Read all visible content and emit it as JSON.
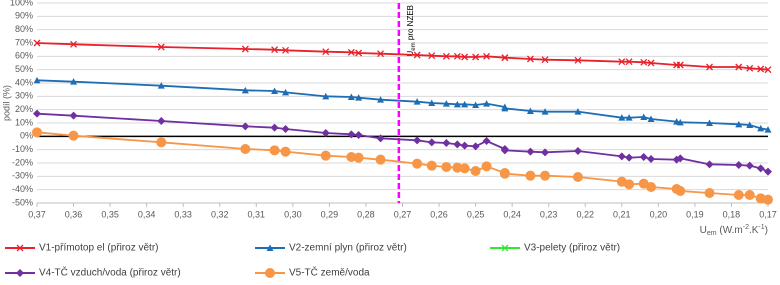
{
  "chart_data": {
    "type": "line",
    "y_label": "podíl (%)",
    "x_label": [
      "U",
      "em",
      " (W.m",
      "-2",
      ".K",
      "-1",
      ")"
    ],
    "annotation": {
      "x": 0.271,
      "text": [
        "U",
        "em",
        " pro NZEB"
      ],
      "color": "#ff00ff"
    },
    "xlim": [
      0.37,
      0.17
    ],
    "ylim": [
      -50,
      100
    ],
    "xticks": [
      {
        "value": 0.37,
        "label": "0,37"
      },
      {
        "value": 0.36,
        "label": "0,36"
      },
      {
        "value": 0.35,
        "label": "0,35"
      },
      {
        "value": 0.34,
        "label": "0,34"
      },
      {
        "value": 0.33,
        "label": "0,33"
      },
      {
        "value": 0.32,
        "label": "0,32"
      },
      {
        "value": 0.31,
        "label": "0,31"
      },
      {
        "value": 0.3,
        "label": "0,30"
      },
      {
        "value": 0.29,
        "label": "0,29"
      },
      {
        "value": 0.28,
        "label": "0,28"
      },
      {
        "value": 0.27,
        "label": "0,27"
      },
      {
        "value": 0.26,
        "label": "0,26"
      },
      {
        "value": 0.25,
        "label": "0,25"
      },
      {
        "value": 0.24,
        "label": "0,24"
      },
      {
        "value": 0.23,
        "label": "0,23"
      },
      {
        "value": 0.22,
        "label": "0,22"
      },
      {
        "value": 0.21,
        "label": "0,21"
      },
      {
        "value": 0.2,
        "label": "0,20"
      },
      {
        "value": 0.19,
        "label": "0,19"
      },
      {
        "value": 0.18,
        "label": "0,18"
      },
      {
        "value": 0.17,
        "label": "0,17"
      }
    ],
    "yticks": [
      {
        "value": 100,
        "label": "100%"
      },
      {
        "value": 90,
        "label": "90%"
      },
      {
        "value": 80,
        "label": "80%"
      },
      {
        "value": 70,
        "label": "70%"
      },
      {
        "value": 60,
        "label": "60%"
      },
      {
        "value": 50,
        "label": "50%"
      },
      {
        "value": 40,
        "label": "40%"
      },
      {
        "value": 30,
        "label": "30%"
      },
      {
        "value": 20,
        "label": "20%"
      },
      {
        "value": 10,
        "label": "10%"
      },
      {
        "value": 0,
        "label": "0%"
      },
      {
        "value": -10,
        "label": "-10%"
      },
      {
        "value": -20,
        "label": "-20%"
      },
      {
        "value": -30,
        "label": "-30%"
      },
      {
        "value": -40,
        "label": "-40%"
      },
      {
        "value": -50,
        "label": "-50%"
      }
    ],
    "grid": true,
    "x": [
      0.37,
      0.36,
      0.336,
      0.313,
      0.305,
      0.302,
      0.291,
      0.284,
      0.282,
      0.276,
      0.266,
      0.262,
      0.258,
      0.255,
      0.253,
      0.25,
      0.247,
      0.242,
      0.242,
      0.235,
      0.231,
      0.222,
      0.21,
      0.208,
      0.204,
      0.202,
      0.195,
      0.194,
      0.186,
      0.178,
      0.175,
      0.172,
      0.17
    ],
    "series": [
      {
        "name": "V1-přímotop el (přiroz větr)",
        "color": "#e8212b",
        "marker": "x",
        "values": [
          70,
          69,
          67,
          65.5,
          65,
          64.5,
          63.5,
          63,
          62.5,
          62,
          61,
          60.5,
          60,
          60,
          59.5,
          59.5,
          60,
          59,
          59,
          58,
          57.5,
          57,
          56,
          56,
          55.5,
          55,
          53.5,
          53.5,
          52,
          52,
          51,
          50.5,
          50
        ]
      },
      {
        "name": "V2-zemní plyn (přiroz větr)",
        "color": "#1f6eb5",
        "marker": "triangle",
        "values": [
          42,
          41,
          38,
          34.5,
          34,
          33,
          30,
          29.5,
          29,
          27.5,
          26,
          25,
          24.5,
          24,
          24,
          23.5,
          24.5,
          22,
          21,
          19,
          18.5,
          18.5,
          14,
          14,
          14.5,
          13,
          11,
          10.5,
          10,
          9,
          8.5,
          6,
          5
        ]
      },
      {
        "name": "V3-pelety (přiroz větr)",
        "color": "#33e633",
        "marker": "x",
        "values": [
          null,
          null,
          null,
          null,
          null,
          null,
          null,
          null,
          null,
          null,
          null,
          null,
          null,
          null,
          null,
          null,
          null,
          null,
          null,
          null,
          null,
          null,
          null,
          null,
          null,
          null,
          null,
          null,
          null,
          null,
          null,
          null,
          null
        ]
      },
      {
        "name": "V4-TČ vzduch/voda (přiroz větr)",
        "color": "#7030a0",
        "marker": "diamond",
        "values": [
          17,
          15.5,
          11.5,
          7.5,
          6.5,
          5.5,
          2.5,
          1.5,
          1,
          -1.5,
          -3,
          -4.5,
          -5,
          -6,
          -7,
          -7.5,
          -3.5,
          -9.5,
          -10.5,
          -11.5,
          -12,
          -11,
          -15,
          -16,
          -15.5,
          -17,
          -17.5,
          -16.5,
          -21,
          -21.5,
          -22,
          -24,
          -26.5
        ]
      },
      {
        "name": "V5-TČ země/voda",
        "color": "#f79646",
        "marker": "circle",
        "values": [
          3,
          0.5,
          -4.5,
          -9.5,
          -10.5,
          -11.5,
          -14.5,
          -15.5,
          -16,
          -17.5,
          -20.5,
          -22,
          -23,
          -23.5,
          -24,
          -26,
          -22.5,
          -27.5,
          -28,
          -29.5,
          -29.5,
          -30.5,
          -34,
          -36,
          -35.5,
          -38,
          -39.5,
          -41,
          -42.5,
          -44,
          -44,
          -46.5,
          -47.5
        ]
      }
    ]
  }
}
